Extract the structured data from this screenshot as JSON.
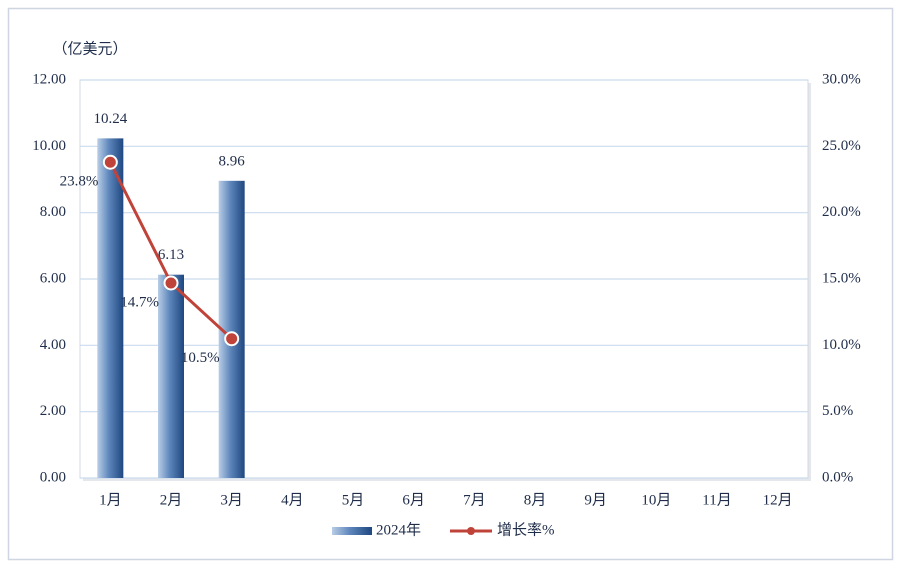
{
  "chart_data": {
    "type": "bar_line",
    "unit_label": "（亿美元）",
    "categories": [
      "1月",
      "2月",
      "3月",
      "4月",
      "5月",
      "6月",
      "7月",
      "8月",
      "9月",
      "10月",
      "11月",
      "12月"
    ],
    "series": [
      {
        "name": "2024年",
        "type": "bar",
        "color": "#2e5c96",
        "values": [
          10.24,
          6.13,
          8.96,
          null,
          null,
          null,
          null,
          null,
          null,
          null,
          null,
          null
        ]
      },
      {
        "name": "增长率%",
        "type": "line",
        "axis": "y2",
        "color": "#c0433a",
        "values": [
          23.8,
          14.7,
          10.5,
          null,
          null,
          null,
          null,
          null,
          null,
          null,
          null,
          null
        ],
        "value_labels": [
          "23.8%",
          "14.7%",
          "10.5%",
          null,
          null,
          null,
          null,
          null,
          null,
          null,
          null,
          null
        ]
      }
    ],
    "ylim": [
      0,
      12
    ],
    "yticks": [
      {
        "value": 0,
        "label": "0.00"
      },
      {
        "value": 2,
        "label": "2.00"
      },
      {
        "value": 4,
        "label": "4.00"
      },
      {
        "value": 6,
        "label": "6.00"
      },
      {
        "value": 8,
        "label": "8.00"
      },
      {
        "value": 10,
        "label": "10.00"
      },
      {
        "value": 12,
        "label": "12.00"
      }
    ],
    "y2lim": [
      0,
      30
    ],
    "y2ticks": [
      {
        "value": 0,
        "label": "0.0%"
      },
      {
        "value": 5,
        "label": "5.0%"
      },
      {
        "value": 10,
        "label": "10.0%"
      },
      {
        "value": 15,
        "label": "15.0%"
      },
      {
        "value": 20,
        "label": "20.0%"
      },
      {
        "value": 25,
        "label": "25.0%"
      },
      {
        "value": 30,
        "label": "30.0%"
      }
    ],
    "grid": true
  }
}
